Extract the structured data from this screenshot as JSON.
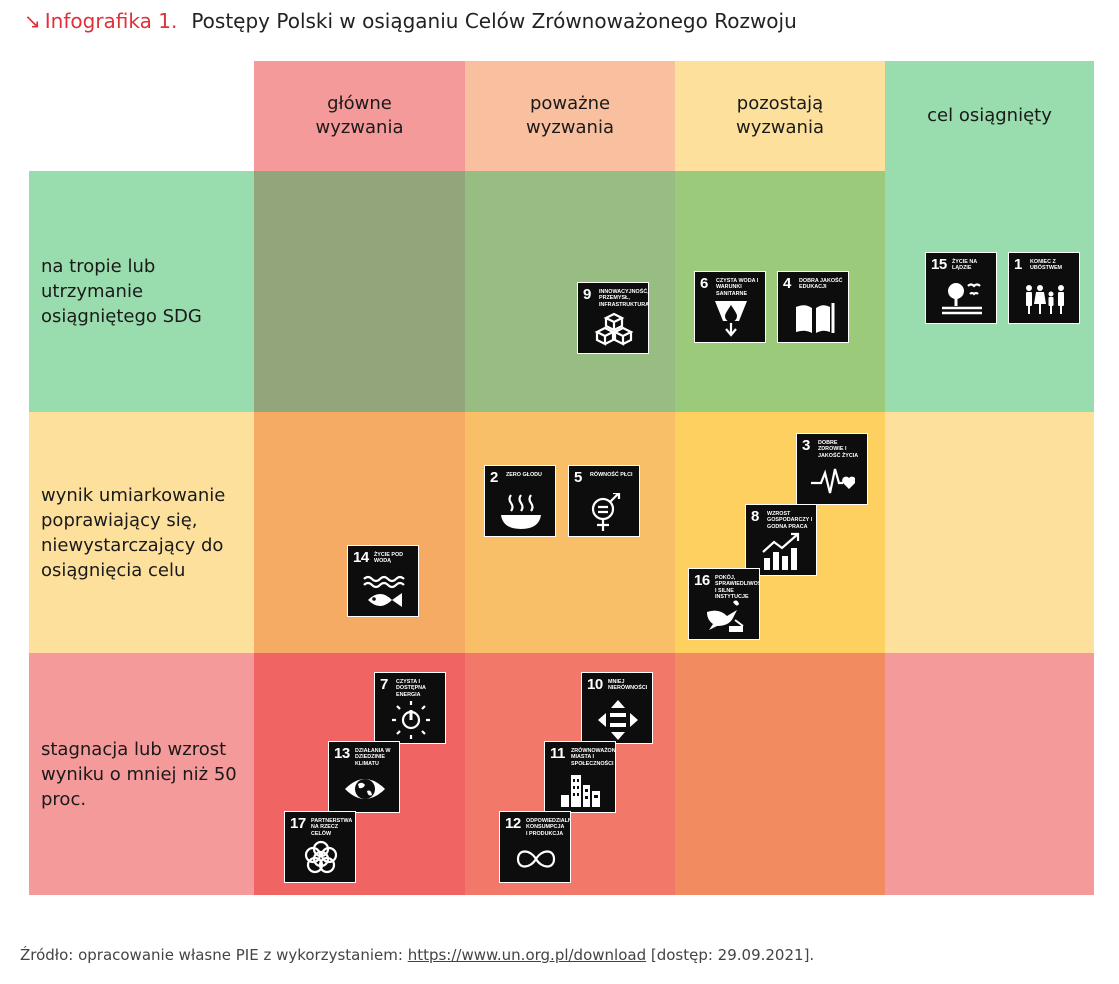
{
  "header": {
    "arrow": "↘",
    "label": "Infografika 1.",
    "title": "Postępy Polski w osiąganiu Celów Zrównoważonego Rozwoju"
  },
  "colors": {
    "col_headers": [
      "#f59a9a",
      "#f9c09f",
      "#fde09b",
      "#99dcad"
    ],
    "row_headers": [
      "#99dcad",
      "#fde09b",
      "#f59a9a"
    ],
    "cells": [
      [
        "#93a57b",
        "#97bd82",
        "#9bcb7a",
        "#99dcad"
      ],
      [
        "#f6ab64",
        "#f9bf68",
        "#fdd060",
        "#fde09b"
      ],
      [
        "#f06464",
        "#f2796a",
        "#f28c60",
        "#f59a9a"
      ]
    ],
    "accent": "#e0303a",
    "tile_bg": "#0d0d0d"
  },
  "chart_data": {
    "type": "table",
    "title": "Postępy Polski w osiąganiu Celów Zrównoważonego Rozwoju",
    "columns": [
      "główne wyzwania",
      "poważne wyzwania",
      "pozostają wyzwania",
      "cel osiągnięty"
    ],
    "rows": [
      "na tropie lub utrzymanie osiągniętego SDG",
      "wynik umiarkowanie poprawiający się, niewystarczający do osiągnięcia celu",
      "stagnacja lub wzrost wyniku o mniej niż 50 proc."
    ],
    "goals": [
      {
        "num": "9",
        "label": "Innowacyjność, przemysł, infrastruktura",
        "row": 0,
        "col": 1,
        "icon": "cubes-icon"
      },
      {
        "num": "6",
        "label": "Czysta woda i warunki sanitarne",
        "row": 0,
        "col": 2,
        "icon": "water-drop-icon"
      },
      {
        "num": "4",
        "label": "Dobra jakość edukacji",
        "row": 0,
        "col": 2,
        "icon": "book-icon"
      },
      {
        "num": "15",
        "label": "Życie na lądzie",
        "row": 0,
        "col": 3,
        "icon": "tree-icon"
      },
      {
        "num": "1",
        "label": "Koniec z ubóstwem",
        "row": 0,
        "col": 3,
        "icon": "family-icon"
      },
      {
        "num": "14",
        "label": "Życie pod wodą",
        "row": 1,
        "col": 0,
        "icon": "fish-icon"
      },
      {
        "num": "2",
        "label": "Zero głodu",
        "row": 1,
        "col": 1,
        "icon": "bowl-icon"
      },
      {
        "num": "5",
        "label": "Równość płci",
        "row": 1,
        "col": 1,
        "icon": "gender-icon"
      },
      {
        "num": "3",
        "label": "Dobre zdrowie i jakość życia",
        "row": 1,
        "col": 2,
        "icon": "heartbeat-icon"
      },
      {
        "num": "8",
        "label": "Wzrost gospodarczy i godna praca",
        "row": 1,
        "col": 2,
        "icon": "growth-chart-icon"
      },
      {
        "num": "16",
        "label": "Pokój, sprawiedliwość i silne instytucje",
        "row": 1,
        "col": 2,
        "icon": "dove-icon"
      },
      {
        "num": "7",
        "label": "Czysta i dostępna energia",
        "row": 2,
        "col": 0,
        "icon": "power-sun-icon"
      },
      {
        "num": "13",
        "label": "Działania w dziedzinie klimatu",
        "row": 2,
        "col": 0,
        "icon": "eye-globe-icon"
      },
      {
        "num": "17",
        "label": "Partnerstwa na rzecz celów",
        "row": 2,
        "col": 0,
        "icon": "rings-icon"
      },
      {
        "num": "10",
        "label": "Mniej nierówności",
        "row": 2,
        "col": 1,
        "icon": "arrows-equal-icon"
      },
      {
        "num": "11",
        "label": "Zrównoważone miasta i społeczności",
        "row": 2,
        "col": 1,
        "icon": "buildings-icon"
      },
      {
        "num": "12",
        "label": "Odpowiedzialna konsumpcja i produkcja",
        "row": 2,
        "col": 1,
        "icon": "infinity-icon"
      }
    ]
  },
  "source": {
    "prefix": "Źródło: opracowanie własne PIE z wykorzystaniem: ",
    "link": "https://www.un.org.pl/download",
    "suffix": " [dostęp: 29.09.2021]."
  }
}
